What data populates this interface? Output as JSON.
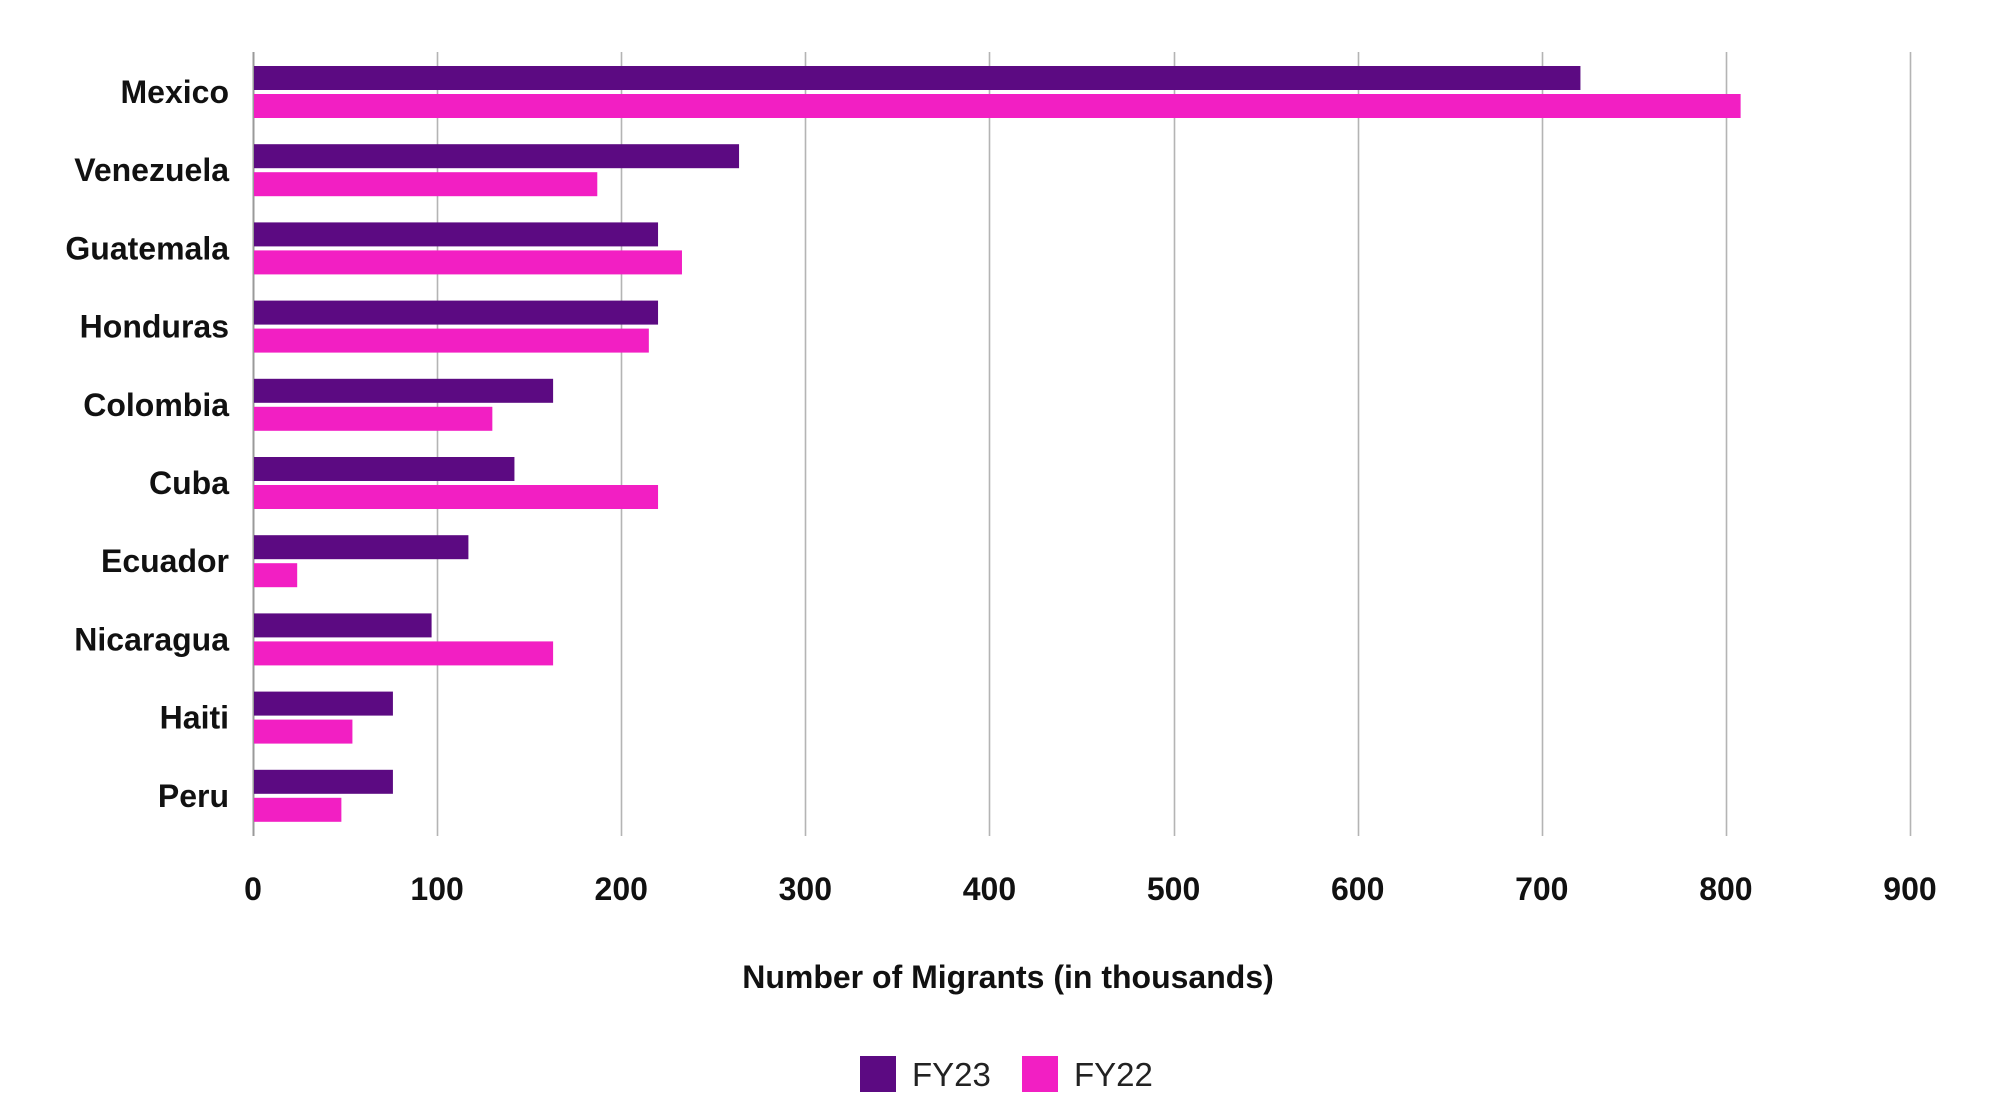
{
  "chart_data": {
    "type": "bar",
    "orientation": "horizontal",
    "categories": [
      "Mexico",
      "Venezuela",
      "Guatemala",
      "Honduras",
      "Colombia",
      "Cuba",
      "Ecuador",
      "Nicaragua",
      "Haiti",
      "Peru"
    ],
    "series": [
      {
        "name": "FY23",
        "color": "#5c0a82",
        "values": [
          721,
          264,
          220,
          220,
          163,
          142,
          117,
          97,
          76,
          76
        ]
      },
      {
        "name": "FY22",
        "color": "#f21fc3",
        "values": [
          808,
          187,
          233,
          215,
          130,
          220,
          24,
          163,
          54,
          48
        ]
      }
    ],
    "xlabel": "Number of Migrants (in thousands)",
    "ylabel": "",
    "xlim": [
      0,
      900
    ],
    "xticks": [
      0,
      100,
      200,
      300,
      400,
      500,
      600,
      700,
      800,
      900
    ],
    "grid": "vertical",
    "legend_position": "bottom-center"
  }
}
